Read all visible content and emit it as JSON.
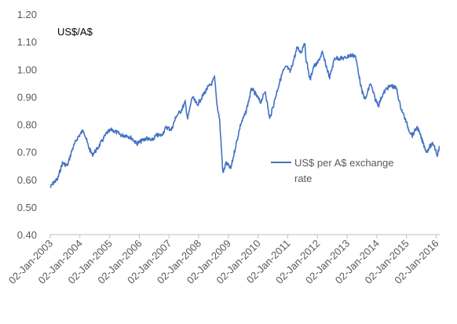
{
  "chart_data": {
    "type": "line",
    "unit_label": "US$/A$",
    "ylim": [
      0.4,
      1.2
    ],
    "y_ticks": [
      "1.20",
      "1.10",
      "1.00",
      "0.90",
      "0.80",
      "0.70",
      "0.60",
      "0.50",
      "0.40"
    ],
    "x_ticks": [
      "02-Jan-2003",
      "02-Jan-2004",
      "02-Jan-2005",
      "02-Jan-2006",
      "02-Jan-2007",
      "02-Jan-2008",
      "02-Jan-2009",
      "02-Jan-2010",
      "02-Jan-2011",
      "02-Jan-2012",
      "02-Jan-2013",
      "02-Jan-2014",
      "02-Jan-2015",
      "02-Jan-2016"
    ],
    "xlim": [
      "2003-01-02",
      "2016-02-15"
    ],
    "grid": false,
    "legend_position": "center-right",
    "series": [
      {
        "name": "US$ per A$ exchange rate",
        "color": "#4472C4",
        "x": [
          "2003-01-02",
          "2003-02-15",
          "2003-04-01",
          "2003-06-01",
          "2003-08-01",
          "2003-10-01",
          "2003-12-01",
          "2004-02-15",
          "2004-04-15",
          "2004-06-01",
          "2004-08-01",
          "2004-10-01",
          "2004-12-01",
          "2005-02-01",
          "2005-04-01",
          "2005-06-01",
          "2005-08-01",
          "2005-10-01",
          "2005-12-01",
          "2006-02-01",
          "2006-04-01",
          "2006-06-01",
          "2006-08-01",
          "2006-10-01",
          "2006-12-01",
          "2007-02-01",
          "2007-04-01",
          "2007-06-01",
          "2007-07-20",
          "2007-08-20",
          "2007-10-15",
          "2007-12-15",
          "2008-02-15",
          "2008-04-15",
          "2008-06-15",
          "2008-07-15",
          "2008-08-15",
          "2008-09-15",
          "2008-10-10",
          "2008-10-27",
          "2008-12-01",
          "2009-02-01",
          "2009-04-01",
          "2009-06-01",
          "2009-08-01",
          "2009-10-15",
          "2009-12-01",
          "2010-02-01",
          "2010-04-01",
          "2010-05-25",
          "2010-07-01",
          "2010-09-01",
          "2010-11-01",
          "2010-12-20",
          "2011-02-01",
          "2011-04-01",
          "2011-05-01",
          "2011-06-15",
          "2011-07-27",
          "2011-08-15",
          "2011-10-04",
          "2011-11-15",
          "2012-01-01",
          "2012-03-01",
          "2012-05-01",
          "2012-06-01",
          "2012-08-01",
          "2012-10-01",
          "2012-12-01",
          "2013-02-01",
          "2013-04-11",
          "2013-05-15",
          "2013-07-01",
          "2013-08-15",
          "2013-10-15",
          "2013-12-15",
          "2014-01-24",
          "2014-03-01",
          "2014-05-01",
          "2014-07-01",
          "2014-09-01",
          "2014-10-15",
          "2014-12-15",
          "2015-02-01",
          "2015-03-15",
          "2015-05-15",
          "2015-07-15",
          "2015-09-07",
          "2015-10-15",
          "2015-12-01",
          "2016-01-15",
          "2016-02-15"
        ],
        "y": [
          0.57,
          0.59,
          0.6,
          0.66,
          0.65,
          0.71,
          0.75,
          0.78,
          0.72,
          0.69,
          0.71,
          0.74,
          0.77,
          0.78,
          0.77,
          0.76,
          0.76,
          0.75,
          0.73,
          0.74,
          0.75,
          0.74,
          0.76,
          0.76,
          0.79,
          0.78,
          0.83,
          0.85,
          0.88,
          0.82,
          0.9,
          0.87,
          0.9,
          0.93,
          0.95,
          0.97,
          0.87,
          0.82,
          0.7,
          0.62,
          0.66,
          0.64,
          0.72,
          0.8,
          0.84,
          0.93,
          0.91,
          0.88,
          0.92,
          0.82,
          0.86,
          0.93,
          0.99,
          1.01,
          0.99,
          1.05,
          1.08,
          1.06,
          1.1,
          1.04,
          0.96,
          1.01,
          1.02,
          1.06,
          1.0,
          0.97,
          1.04,
          1.04,
          1.04,
          1.05,
          1.05,
          1.0,
          0.92,
          0.89,
          0.95,
          0.89,
          0.87,
          0.9,
          0.93,
          0.94,
          0.93,
          0.87,
          0.82,
          0.78,
          0.76,
          0.79,
          0.74,
          0.7,
          0.72,
          0.73,
          0.69,
          0.72
        ]
      }
    ]
  }
}
